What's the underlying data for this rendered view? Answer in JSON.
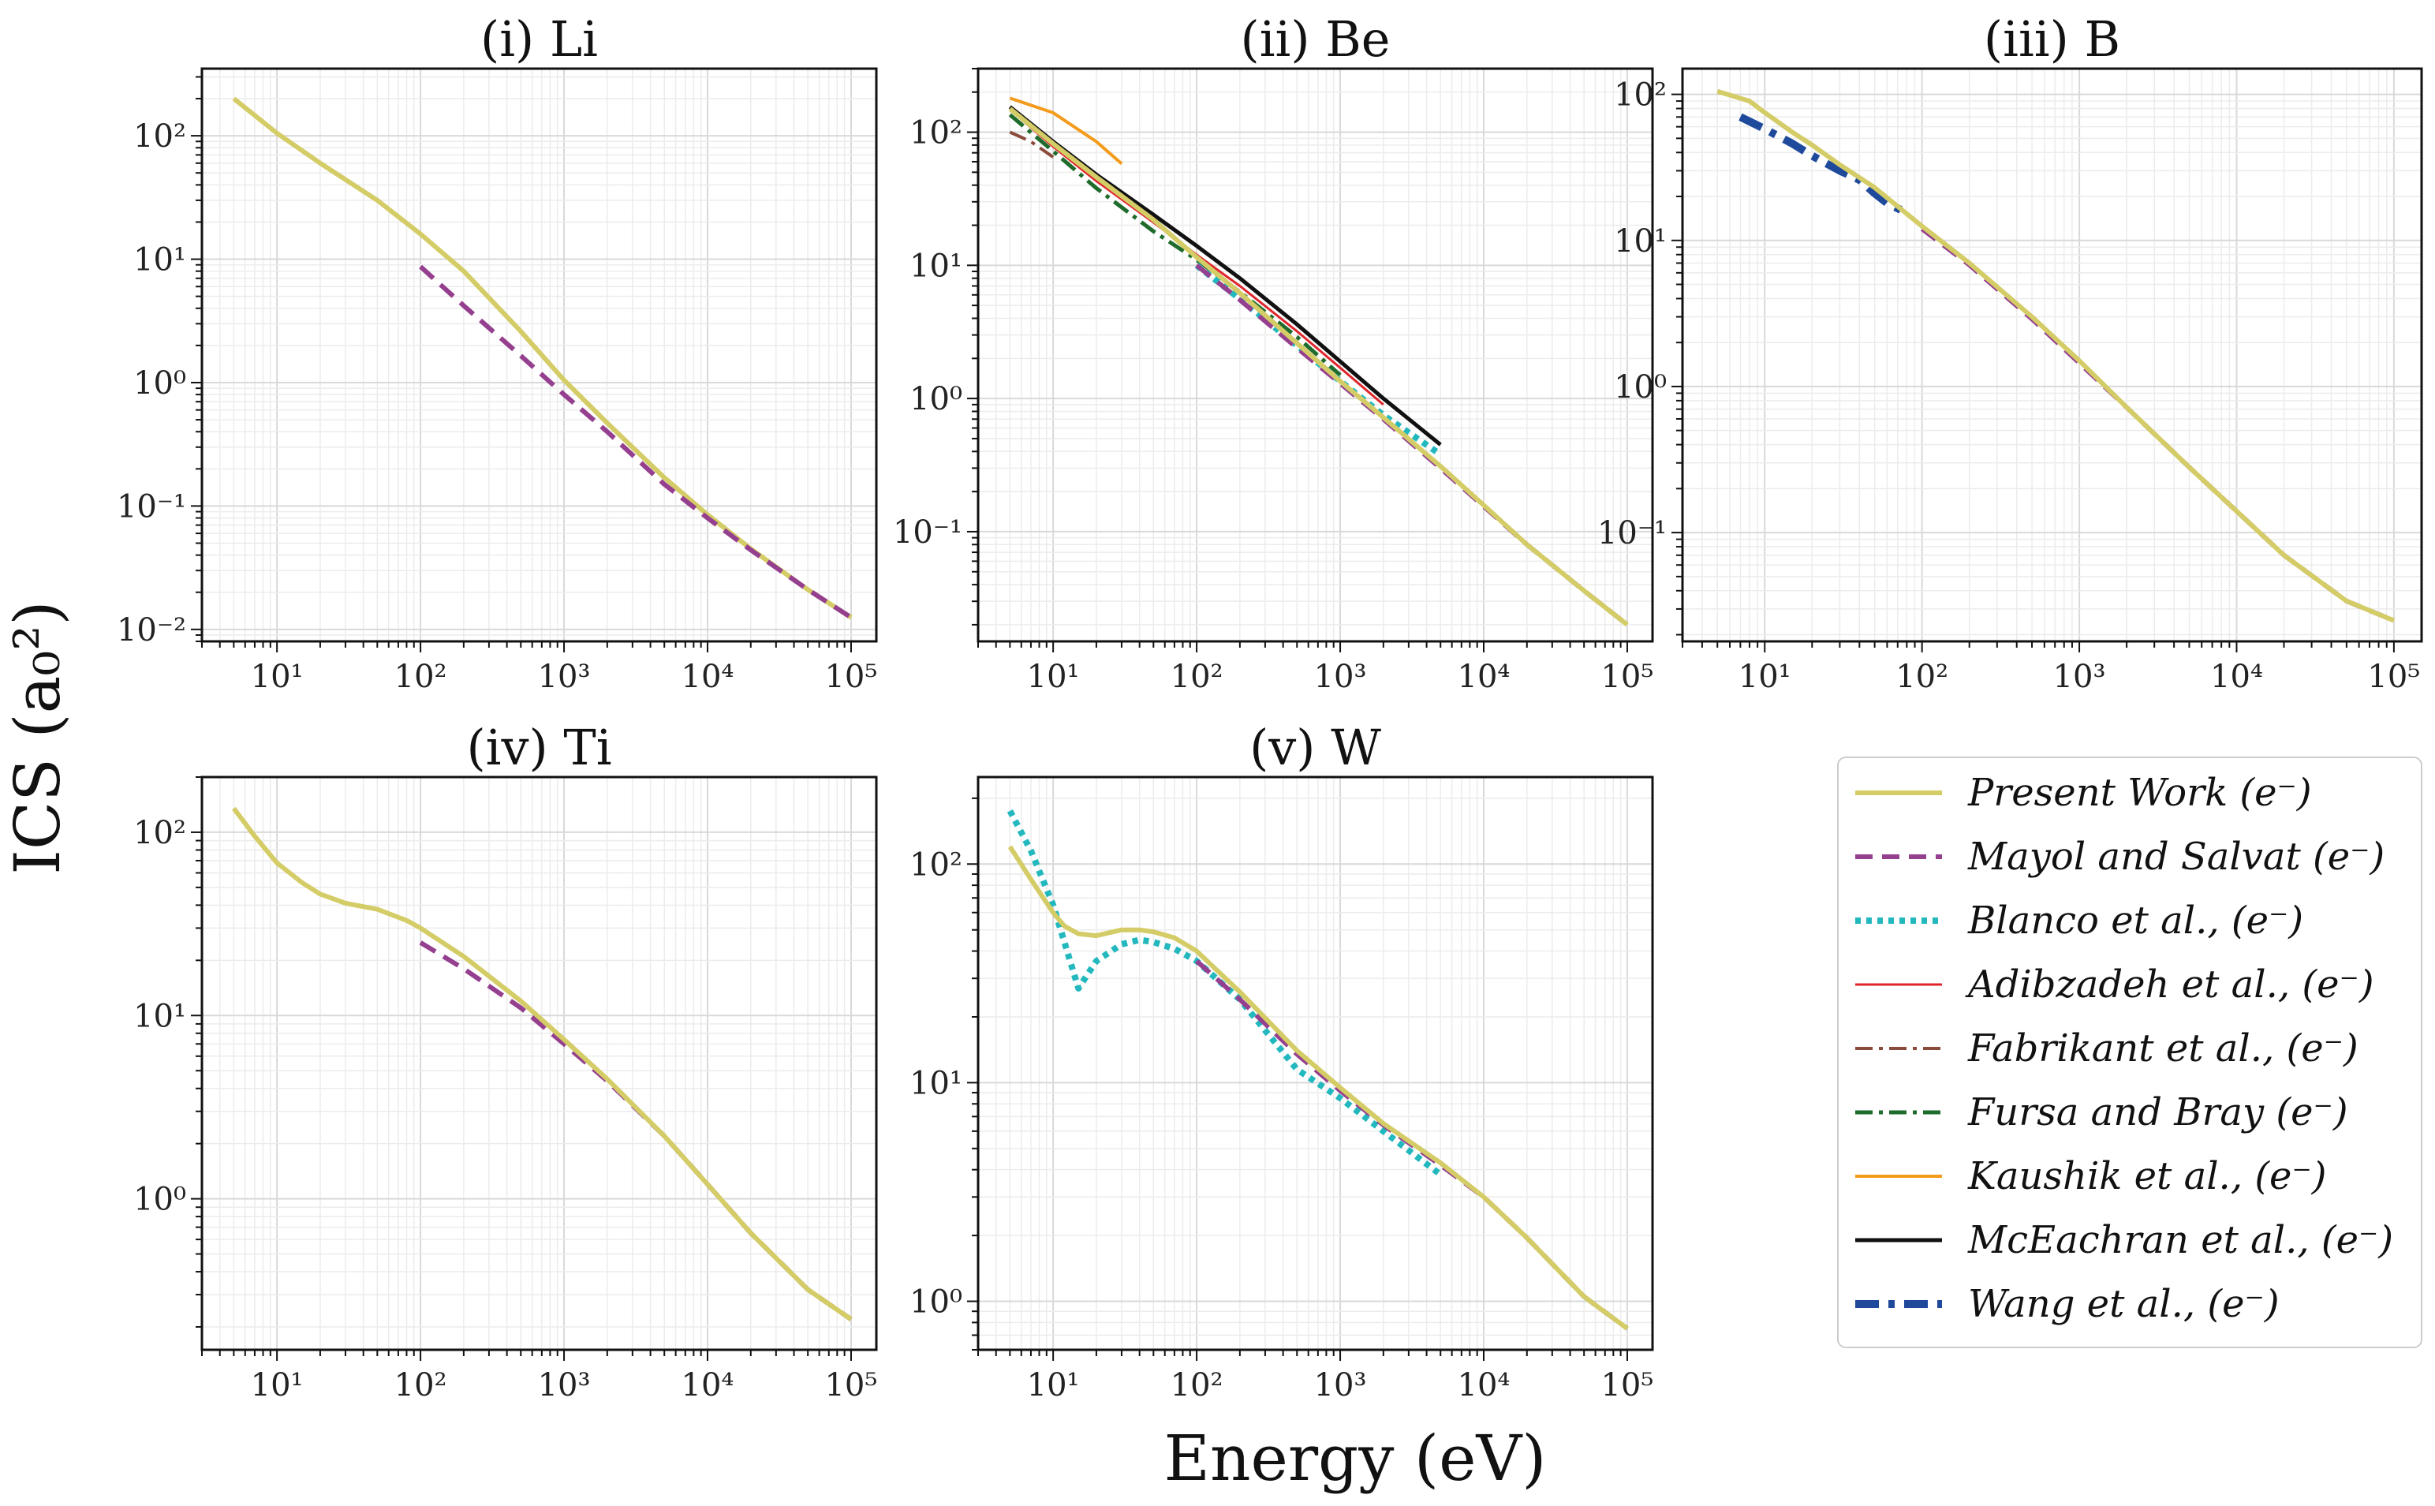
{
  "figure": {
    "xlabel": "Energy (eV)",
    "ylabel": "ICS (a₀²)"
  },
  "series_styles": {
    "Present Work (e⁻)": {
      "color": "#d4cc66",
      "width": 6,
      "dash": ""
    },
    "Mayol and Salvat (e⁻)": {
      "color": "#953f8f",
      "width": 6,
      "dash": "22,12"
    },
    "Blanco et al., (e⁻)": {
      "color": "#22b8be",
      "width": 8,
      "dash": "7,7"
    },
    "Adibzadeh et al., (e⁻)": {
      "color": "#e0262d",
      "width": 3,
      "dash": ""
    },
    "Fabrikant et al., (e⁻)": {
      "color": "#8a4a3c",
      "width": 4,
      "dash": "22,8,5,8"
    },
    "Fursa and Bray (e⁻)": {
      "color": "#1e6b2c",
      "width": 5,
      "dash": "22,8,5,8"
    },
    "Kaushik et al., (e⁻)": {
      "color": "#f39b1c",
      "width": 4,
      "dash": ""
    },
    "McEachran et al., (e⁻)": {
      "color": "#111111",
      "width": 5,
      "dash": ""
    },
    "Wang et al., (e⁻)": {
      "color": "#1f4a9c",
      "width": 10,
      "dash": "30,12,8,12"
    }
  },
  "legend": {
    "position": "lower-right",
    "entries": [
      "Present Work (e⁻)",
      "Mayol and Salvat (e⁻)",
      "Blanco et al., (e⁻)",
      "Adibzadeh et al., (e⁻)",
      "Fabrikant et al., (e⁻)",
      "Fursa and Bray (e⁻)",
      "Kaushik et al., (e⁻)",
      "McEachran et al., (e⁻)",
      "Wang et al., (e⁻)"
    ]
  },
  "chart_data": [
    {
      "type": "line",
      "title": "(i) Li",
      "xscale": "log",
      "yscale": "log",
      "xlim": [
        3,
        150000
      ],
      "ylim": [
        0.008,
        350
      ],
      "xticks": [
        10,
        100,
        1000,
        10000,
        100000
      ],
      "yticks": [
        0.01,
        0.1,
        1,
        10,
        100
      ],
      "grid": true,
      "series": [
        {
          "name": "Present Work (e⁻)",
          "x": [
            5,
            10,
            20,
            50,
            100,
            200,
            500,
            1000,
            2000,
            5000,
            10000,
            20000,
            50000,
            100000
          ],
          "y": [
            200,
            105,
            60,
            30,
            16,
            8,
            2.6,
            1.05,
            0.47,
            0.17,
            0.085,
            0.045,
            0.021,
            0.0125
          ]
        },
        {
          "name": "Mayol and Salvat (e⁻)",
          "x": [
            100,
            200,
            500,
            1000,
            2000,
            5000,
            10000,
            20000,
            50000,
            100000
          ],
          "y": [
            8.7,
            4.2,
            1.65,
            0.8,
            0.4,
            0.15,
            0.08,
            0.044,
            0.021,
            0.0125
          ]
        }
      ]
    },
    {
      "type": "line",
      "title": "(ii) Be",
      "xscale": "log",
      "yscale": "log",
      "xlim": [
        3,
        150000
      ],
      "ylim": [
        0.015,
        300
      ],
      "xticks": [
        10,
        100,
        1000,
        10000,
        100000
      ],
      "yticks": [
        0.1,
        1,
        10,
        100
      ],
      "grid": true,
      "series": [
        {
          "name": "Kaushik et al., (e⁻)",
          "x": [
            5,
            10,
            20,
            30
          ],
          "y": [
            180,
            140,
            85,
            58
          ]
        },
        {
          "name": "McEachran et al., (e⁻)",
          "x": [
            5,
            10,
            20,
            50,
            100,
            200,
            500,
            1000,
            2000,
            5000
          ],
          "y": [
            155,
            85,
            48,
            24,
            14,
            8,
            3.6,
            1.9,
            1.0,
            0.45
          ]
        },
        {
          "name": "Adibzadeh et al., (e⁻)",
          "x": [
            5,
            10,
            20,
            50,
            100,
            200,
            500,
            1000,
            2000
          ],
          "y": [
            148,
            78,
            43,
            21,
            12,
            7.0,
            3.2,
            1.7,
            0.9
          ]
        },
        {
          "name": "Fursa and Bray (e⁻)",
          "x": [
            5,
            10,
            20,
            50,
            100,
            200,
            500,
            1000
          ],
          "y": [
            135,
            72,
            38,
            18,
            11,
            6.3,
            2.9,
            1.5
          ]
        },
        {
          "name": "Fabrikant et al., (e⁻)",
          "x": [
            5,
            7,
            10
          ],
          "y": [
            100,
            85,
            65
          ]
        },
        {
          "name": "Blanco et al., (e⁻)",
          "x": [
            100,
            200,
            500,
            1000,
            2000,
            5000
          ],
          "y": [
            10,
            5.6,
            2.5,
            1.35,
            0.75,
            0.38
          ]
        },
        {
          "name": "Mayol and Salvat (e⁻)",
          "x": [
            100,
            200,
            500,
            1000,
            2000,
            5000,
            10000,
            20000,
            50000,
            100000
          ],
          "y": [
            10,
            5.5,
            2.4,
            1.3,
            0.7,
            0.3,
            0.155,
            0.08,
            0.036,
            0.02
          ]
        },
        {
          "name": "Present Work (e⁻)",
          "x": [
            5,
            10,
            20,
            50,
            100,
            200,
            500,
            1000,
            2000,
            5000,
            10000,
            20000,
            50000,
            100000
          ],
          "y": [
            150,
            82,
            46,
            22,
            11.5,
            6.2,
            2.6,
            1.35,
            0.72,
            0.31,
            0.158,
            0.08,
            0.036,
            0.02
          ]
        }
      ]
    },
    {
      "type": "line",
      "title": "(iii) B",
      "xscale": "log",
      "yscale": "log",
      "xlim": [
        3,
        150000
      ],
      "ylim": [
        0.018,
        150
      ],
      "xticks": [
        10,
        100,
        1000,
        10000,
        100000
      ],
      "yticks": [
        0.1,
        1,
        10,
        100
      ],
      "grid": true,
      "series": [
        {
          "name": "Wang et al., (e⁻)",
          "x": [
            7,
            10,
            15,
            20,
            30,
            40,
            50,
            60,
            75
          ],
          "y": [
            70,
            58,
            46,
            38,
            30,
            26,
            21,
            18,
            16
          ]
        },
        {
          "name": "Mayol and Salvat (e⁻)",
          "x": [
            100,
            200,
            500,
            1000,
            2000,
            5000,
            10000,
            20000,
            50000,
            100000
          ],
          "y": [
            12,
            6.8,
            2.9,
            1.45,
            0.72,
            0.28,
            0.14,
            0.07,
            0.034,
            0.025
          ]
        },
        {
          "name": "Present Work (e⁻)",
          "x": [
            5,
            8,
            10,
            15,
            20,
            30,
            50,
            100,
            200,
            500,
            1000,
            2000,
            5000,
            10000,
            20000,
            50000,
            100000
          ],
          "y": [
            105,
            90,
            75,
            55,
            45,
            33,
            23,
            12.5,
            7,
            3.0,
            1.5,
            0.72,
            0.28,
            0.14,
            0.07,
            0.034,
            0.025
          ]
        }
      ]
    },
    {
      "type": "line",
      "title": "(iv) Ti",
      "xscale": "log",
      "yscale": "log",
      "xlim": [
        3,
        150000
      ],
      "ylim": [
        0.15,
        200
      ],
      "xticks": [
        10,
        100,
        1000,
        10000,
        100000
      ],
      "yticks": [
        1,
        10,
        100
      ],
      "grid": true,
      "series": [
        {
          "name": "Mayol and Salvat (e⁻)",
          "x": [
            100,
            200,
            500,
            1000,
            2000,
            5000,
            10000,
            20000,
            50000,
            100000
          ],
          "y": [
            25,
            18,
            11,
            7.0,
            4.4,
            2.2,
            1.2,
            0.65,
            0.32,
            0.22
          ]
        },
        {
          "name": "Present Work (e⁻)",
          "x": [
            5,
            7,
            10,
            15,
            20,
            30,
            50,
            80,
            100,
            200,
            500,
            1000,
            2000,
            5000,
            10000,
            20000,
            50000,
            100000
          ],
          "y": [
            135,
            95,
            68,
            53,
            46,
            41,
            38,
            33,
            30,
            21,
            12,
            7.4,
            4.5,
            2.2,
            1.2,
            0.65,
            0.32,
            0.22
          ]
        }
      ]
    },
    {
      "type": "line",
      "title": "(v) W",
      "xscale": "log",
      "yscale": "log",
      "xlim": [
        3,
        150000
      ],
      "ylim": [
        0.6,
        250
      ],
      "xticks": [
        10,
        100,
        1000,
        10000,
        100000
      ],
      "yticks": [
        1,
        10,
        100
      ],
      "grid": true,
      "series": [
        {
          "name": "Blanco et al., (e⁻)",
          "x": [
            5,
            7,
            10,
            15,
            20,
            30,
            40,
            50,
            70,
            100,
            200,
            500,
            1000,
            2000,
            5000
          ],
          "y": [
            175,
            115,
            65,
            27,
            36,
            43,
            45,
            44,
            41,
            36,
            24,
            11.5,
            8.5,
            6,
            3.8
          ]
        },
        {
          "name": "Mayol and Salvat (e⁻)",
          "x": [
            100,
            200,
            500,
            1000,
            2000,
            5000,
            10000,
            20000,
            50000,
            100000
          ],
          "y": [
            36,
            24,
            13.5,
            9.2,
            6.4,
            4.2,
            3.0,
            1.95,
            1.05,
            0.75
          ]
        },
        {
          "name": "Present Work (e⁻)",
          "x": [
            5,
            7,
            10,
            12,
            15,
            20,
            30,
            40,
            50,
            70,
            100,
            200,
            500,
            1000,
            2000,
            5000,
            10000,
            20000,
            50000,
            100000
          ],
          "y": [
            120,
            85,
            60,
            52,
            48,
            47,
            50,
            50,
            49,
            46,
            40,
            26,
            14,
            9.5,
            6.5,
            4.3,
            3.0,
            1.95,
            1.05,
            0.75
          ]
        }
      ]
    }
  ]
}
